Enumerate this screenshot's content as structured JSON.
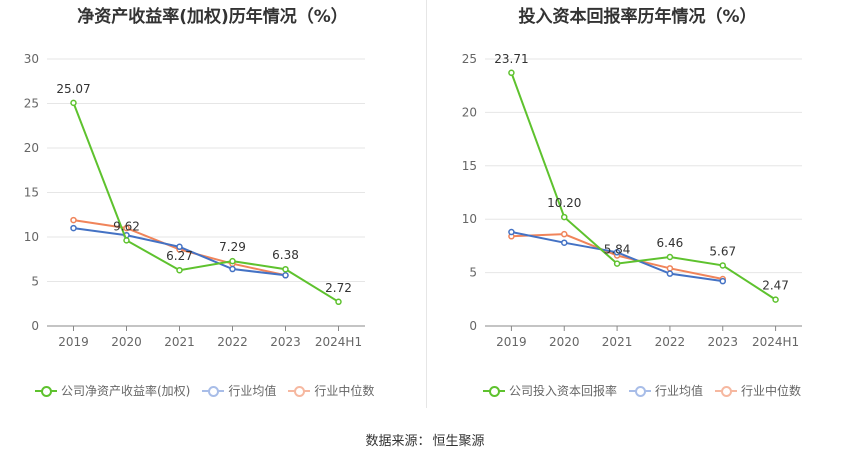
{
  "chart_data": [
    {
      "type": "line",
      "title": "净资产收益率(加权)历年情况（%）",
      "categories": [
        "2019",
        "2020",
        "2021",
        "2022",
        "2023",
        "2024H1"
      ],
      "ylim": [
        0,
        30
      ],
      "yticks": [
        0,
        5,
        10,
        15,
        20,
        25,
        30
      ],
      "grid": true,
      "legend_position": "bottom",
      "series": [
        {
          "name": "公司净资产收益率(加权)",
          "color": "#5ec22e",
          "values": [
            25.07,
            9.62,
            6.27,
            7.29,
            6.38,
            2.72
          ],
          "labels": [
            "25.07",
            "9.62",
            "6.27",
            "7.29",
            "6.38",
            "2.72"
          ]
        },
        {
          "name": "行业均值",
          "color": "#4472c4",
          "values": [
            11.0,
            10.2,
            8.9,
            6.4,
            5.7,
            null
          ]
        },
        {
          "name": "行业中位数",
          "color": "#f0845a",
          "values": [
            11.9,
            11.0,
            8.6,
            7.0,
            5.7,
            null
          ]
        }
      ]
    },
    {
      "type": "line",
      "title": "投入资本回报率历年情况（%）",
      "categories": [
        "2019",
        "2020",
        "2021",
        "2022",
        "2023",
        "2024H1"
      ],
      "ylim": [
        0,
        25
      ],
      "yticks": [
        0,
        5,
        10,
        15,
        20,
        25
      ],
      "grid": true,
      "legend_position": "bottom",
      "series": [
        {
          "name": "公司投入资本回报率",
          "color": "#5ec22e",
          "values": [
            23.71,
            10.2,
            5.84,
            6.46,
            5.67,
            2.47
          ],
          "labels": [
            "23.71",
            "10.20",
            "5.84",
            "6.46",
            "5.67",
            "2.47"
          ]
        },
        {
          "name": "行业均值",
          "color": "#4472c4",
          "values": [
            8.8,
            7.8,
            6.9,
            4.9,
            4.2,
            null
          ]
        },
        {
          "name": "行业中位数",
          "color": "#f0845a",
          "values": [
            8.4,
            8.6,
            6.6,
            5.4,
            4.4,
            null
          ]
        }
      ]
    }
  ],
  "source": {
    "label": "数据来源：",
    "value": "恒生聚源"
  }
}
